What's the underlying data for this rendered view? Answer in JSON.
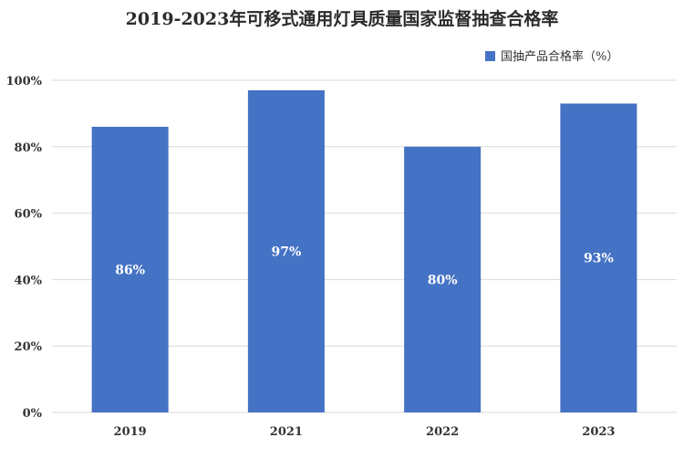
{
  "chart_data": {
    "type": "bar",
    "title": "2019-2023年可移式通用灯具质量国家监督抽查合格率",
    "categories": [
      "2019",
      "2021",
      "2022",
      "2023"
    ],
    "series": [
      {
        "name": "国抽产品合格率（%）",
        "values": [
          86,
          97,
          80,
          93
        ],
        "labels": [
          "86%",
          "97%",
          "80%",
          "93%"
        ]
      }
    ],
    "ylim": [
      0,
      100
    ],
    "yticks": [
      0,
      20,
      40,
      60,
      80,
      100
    ],
    "ytick_labels": [
      "0%",
      "20%",
      "40%",
      "60%",
      "80%",
      "100%"
    ],
    "xlabel": "",
    "ylabel": "",
    "grid": true,
    "legend_position": "top-right",
    "colors": {
      "bar": "#4472c4",
      "grid": "#d9d9d9"
    }
  }
}
